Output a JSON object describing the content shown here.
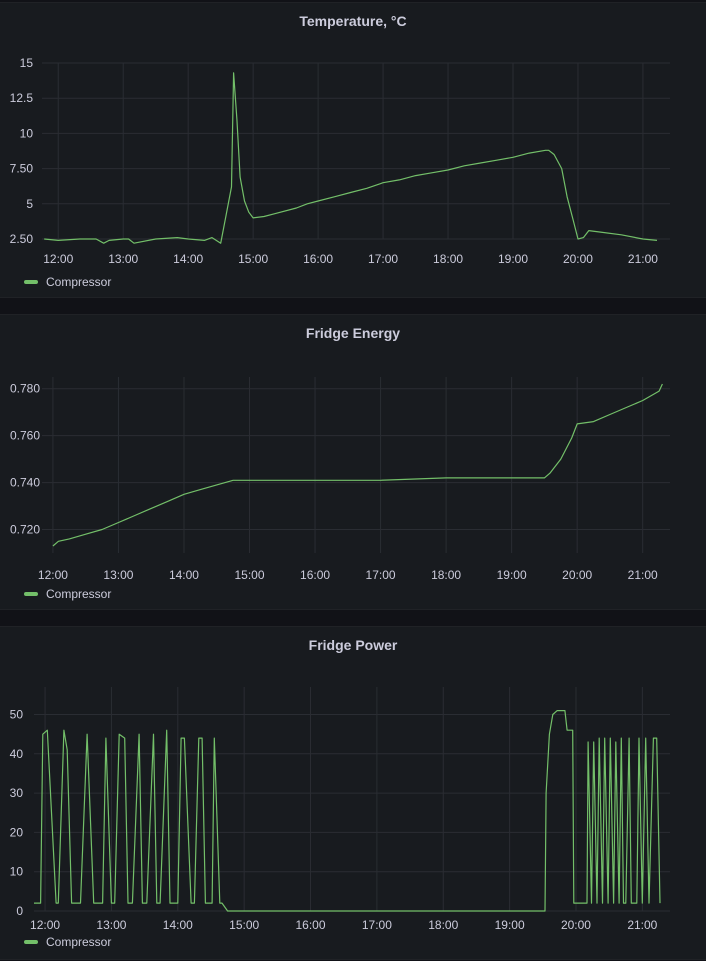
{
  "chart_data": [
    {
      "type": "line",
      "title": "Temperature, °C",
      "xlabel": "",
      "ylabel": "",
      "x_ticks": [
        "12:00",
        "13:00",
        "14:00",
        "15:00",
        "16:00",
        "17:00",
        "18:00",
        "19:00",
        "20:00",
        "21:00"
      ],
      "y_ticks": [
        "2.50",
        "5",
        "7.50",
        "10",
        "12.5",
        "15"
      ],
      "ylim": [
        2.5,
        15
      ],
      "xlim": [
        "11:45",
        "21:25"
      ],
      "grid": true,
      "legend": "bottom-left",
      "series": [
        {
          "name": "Compressor",
          "color": "#73bf69",
          "x": [
            "11:47",
            "12:00",
            "12:20",
            "12:35",
            "12:42",
            "12:47",
            "13:00",
            "13:05",
            "13:10",
            "13:30",
            "13:50",
            "14:00",
            "14:15",
            "14:22",
            "14:30",
            "14:35",
            "14:40",
            "14:42",
            "14:45",
            "14:48",
            "14:52",
            "14:56",
            "15:00",
            "15:10",
            "15:20",
            "15:40",
            "15:50",
            "16:00",
            "16:15",
            "16:30",
            "16:45",
            "17:00",
            "17:15",
            "17:30",
            "17:45",
            "18:00",
            "18:15",
            "18:30",
            "18:45",
            "19:00",
            "19:15",
            "19:30",
            "19:33",
            "19:38",
            "19:45",
            "19:50",
            "19:55",
            "20:00",
            "20:05",
            "20:10",
            "20:20",
            "20:40",
            "21:00",
            "21:13"
          ],
          "values": [
            2.5,
            2.4,
            2.5,
            2.5,
            2.2,
            2.4,
            2.5,
            2.5,
            2.2,
            2.5,
            2.6,
            2.5,
            2.4,
            2.6,
            2.2,
            4.2,
            6.2,
            14.3,
            11,
            6.9,
            5.2,
            4.4,
            4.0,
            4.1,
            4.3,
            4.7,
            5.0,
            5.2,
            5.5,
            5.8,
            6.1,
            6.5,
            6.7,
            7.0,
            7.2,
            7.4,
            7.7,
            7.9,
            8.1,
            8.3,
            8.6,
            8.8,
            8.8,
            8.5,
            7.5,
            5.5,
            4.0,
            2.5,
            2.6,
            3.1,
            3.0,
            2.8,
            2.5,
            2.4
          ]
        }
      ]
    },
    {
      "type": "line",
      "title": "Fridge Energy",
      "xlabel": "",
      "ylabel": "",
      "x_ticks": [
        "12:00",
        "13:00",
        "14:00",
        "15:00",
        "16:00",
        "17:00",
        "18:00",
        "19:00",
        "20:00",
        "21:00"
      ],
      "y_ticks": [
        "0.720",
        "0.740",
        "0.760",
        "0.780"
      ],
      "ylim": [
        0.71,
        0.785
      ],
      "xlim": [
        "11:50",
        "21:25"
      ],
      "grid": true,
      "legend": "bottom-left",
      "series": [
        {
          "name": "Compressor",
          "color": "#73bf69",
          "x": [
            "12:00",
            "12:05",
            "12:15",
            "12:30",
            "12:45",
            "13:00",
            "13:15",
            "13:30",
            "13:45",
            "14:00",
            "14:15",
            "14:30",
            "14:45",
            "15:00",
            "16:00",
            "17:00",
            "18:00",
            "19:00",
            "19:30",
            "19:35",
            "19:45",
            "19:55",
            "20:00",
            "20:15",
            "20:30",
            "20:45",
            "21:00",
            "21:15",
            "21:18"
          ],
          "values": [
            0.713,
            0.715,
            0.716,
            0.718,
            0.72,
            0.723,
            0.726,
            0.729,
            0.732,
            0.735,
            0.737,
            0.739,
            0.741,
            0.741,
            0.741,
            0.741,
            0.742,
            0.742,
            0.742,
            0.744,
            0.75,
            0.759,
            0.765,
            0.766,
            0.769,
            0.772,
            0.775,
            0.779,
            0.782
          ]
        }
      ]
    },
    {
      "type": "line",
      "title": "Fridge Power",
      "xlabel": "",
      "ylabel": "",
      "x_ticks": [
        "12:00",
        "13:00",
        "14:00",
        "15:00",
        "16:00",
        "17:00",
        "18:00",
        "19:00",
        "20:00",
        "21:00"
      ],
      "y_ticks": [
        "0",
        "10",
        "20",
        "30",
        "40",
        "50"
      ],
      "ylim": [
        0,
        57
      ],
      "xlim": [
        "11:50",
        "21:25"
      ],
      "grid": true,
      "legend": "bottom-left",
      "series": [
        {
          "name": "Compressor",
          "color": "#73bf69",
          "x": [
            "11:50",
            "11:53",
            "11:56",
            "11:58",
            "12:02",
            "12:10",
            "12:12",
            "12:17",
            "12:20",
            "12:24",
            "12:30",
            "12:32",
            "12:38",
            "12:44",
            "12:48",
            "12:52",
            "12:55",
            "13:00",
            "13:03",
            "13:07",
            "13:12",
            "13:15",
            "13:19",
            "13:25",
            "13:28",
            "13:32",
            "13:38",
            "13:41",
            "13:44",
            "13:50",
            "13:53",
            "13:57",
            "14:00",
            "14:03",
            "14:06",
            "14:12",
            "14:15",
            "14:19",
            "14:22",
            "14:25",
            "14:31",
            "14:33",
            "14:38",
            "14:40",
            "14:45",
            "19:32",
            "19:33",
            "19:36",
            "19:39",
            "19:43",
            "19:45",
            "19:50",
            "19:52",
            "19:55",
            "19:57",
            "19:58",
            "20:00",
            "20:10",
            "20:11",
            "20:14",
            "20:16",
            "20:19",
            "20:21",
            "20:24",
            "20:26",
            "20:29",
            "20:31",
            "20:34",
            "20:36",
            "20:39",
            "20:41",
            "20:43",
            "20:45",
            "20:48",
            "20:50",
            "20:55",
            "20:57",
            "21:00",
            "21:03",
            "21:06",
            "21:10",
            "21:13",
            "21:16"
          ],
          "values": [
            2,
            2,
            2,
            45,
            46,
            2,
            2,
            46,
            41,
            2,
            2,
            2,
            45,
            2,
            2,
            2,
            44,
            2,
            2,
            45,
            44,
            2,
            2,
            45,
            2,
            2,
            45,
            2,
            2,
            46,
            2,
            2,
            2,
            44,
            44,
            2,
            2,
            44,
            44,
            2,
            2,
            44,
            2,
            2,
            0,
            0,
            30,
            45,
            50,
            51,
            51,
            51,
            46,
            46,
            46,
            2,
            2,
            2,
            43,
            2,
            43,
            2,
            44,
            2,
            44,
            2,
            44,
            2,
            43,
            2,
            44,
            2,
            2,
            44,
            2,
            2,
            44,
            2,
            44,
            2,
            44,
            44,
            2
          ]
        }
      ]
    }
  ]
}
